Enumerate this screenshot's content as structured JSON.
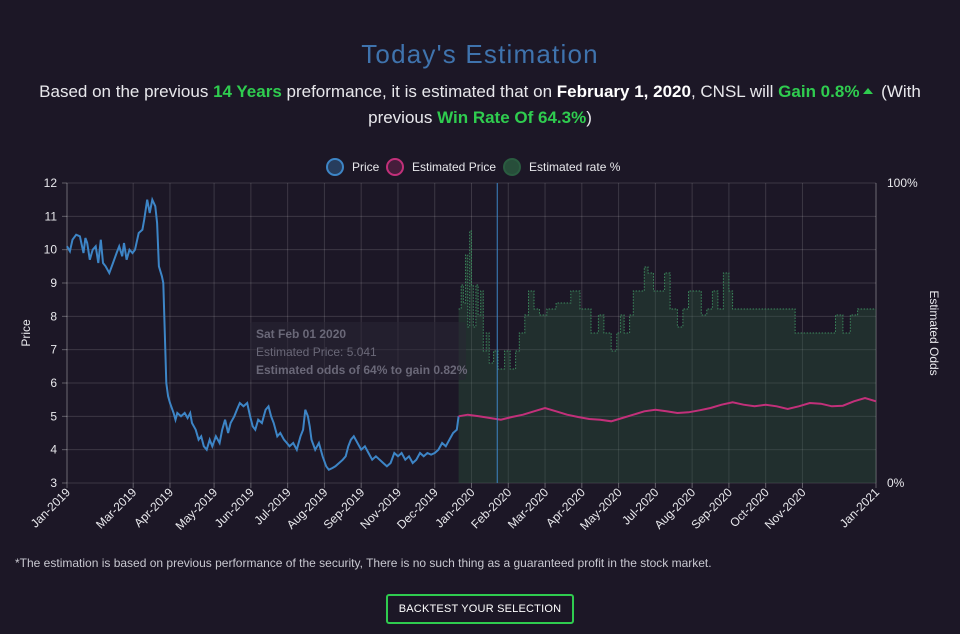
{
  "header": {
    "title": "Today's Estimation"
  },
  "summary": {
    "t1": "Based on the previous ",
    "years": "14 Years",
    "t2": " preformance, it is estimated that on ",
    "date": "February 1, 2020",
    "t3": ", CNSL will ",
    "gain": "Gain 0.8%",
    "t4": " (With previous ",
    "winrate": "Win Rate Of 64.3%",
    "t5": ")"
  },
  "colors": {
    "price": "#3d85c6",
    "estimated_price": "#c2307a",
    "estimated_rate": "#2a5c40",
    "accent_green": "#2fcc4f",
    "title_blue": "#3f73ad"
  },
  "chart_data": {
    "type": "line",
    "legend": [
      {
        "name": "Price",
        "color": "#3d85c6"
      },
      {
        "name": "Estimated Price",
        "color": "#c2307a"
      },
      {
        "name": "Estimated rate %",
        "color": "#2a5c40"
      }
    ],
    "ylabel_left": "Price",
    "ylabel_right": "Estimated Odds",
    "ylim": [
      3,
      12
    ],
    "yticks": [
      3,
      4,
      5,
      6,
      7,
      8,
      9,
      10,
      11,
      12
    ],
    "y2lim": [
      0,
      100
    ],
    "y2ticks": [
      {
        "value": 0,
        "label": "0%"
      },
      {
        "value": 100,
        "label": "100%"
      }
    ],
    "x_ticks": [
      {
        "t": 0,
        "label": "Jan-2019"
      },
      {
        "t": 1.8,
        "label": "Mar-2019"
      },
      {
        "t": 2.8,
        "label": "Apr-2019"
      },
      {
        "t": 4.0,
        "label": "May-2019"
      },
      {
        "t": 5.0,
        "label": "Jun-2019"
      },
      {
        "t": 6.0,
        "label": "Jul-2019"
      },
      {
        "t": 7.0,
        "label": "Aug-2019"
      },
      {
        "t": 8.0,
        "label": "Sep-2019"
      },
      {
        "t": 9.0,
        "label": "Nov-2019"
      },
      {
        "t": 10.0,
        "label": "Dec-2019"
      },
      {
        "t": 11.0,
        "label": "Jan-2020"
      },
      {
        "t": 12.0,
        "label": "Feb-2020"
      },
      {
        "t": 13.0,
        "label": "Mar-2020"
      },
      {
        "t": 14.0,
        "label": "Apr-2020"
      },
      {
        "t": 15.0,
        "label": "May-2020"
      },
      {
        "t": 16.0,
        "label": "Jul-2020"
      },
      {
        "t": 17.0,
        "label": "Aug-2020"
      },
      {
        "t": 18.0,
        "label": "Sep-2020"
      },
      {
        "t": 19.0,
        "label": "Oct-2020"
      },
      {
        "t": 20.0,
        "label": "Nov-2020"
      },
      {
        "t": 22.0,
        "label": "Jan-2021"
      }
    ],
    "x_range": [
      0,
      22
    ],
    "marker_t": 11.7,
    "series": [
      {
        "name": "Price",
        "axis": "left",
        "points": [
          [
            0.0,
            10.1
          ],
          [
            0.08,
            9.95
          ],
          [
            0.15,
            10.3
          ],
          [
            0.25,
            10.45
          ],
          [
            0.35,
            10.4
          ],
          [
            0.45,
            9.9
          ],
          [
            0.5,
            10.35
          ],
          [
            0.55,
            10.2
          ],
          [
            0.62,
            9.7
          ],
          [
            0.7,
            10.0
          ],
          [
            0.78,
            10.1
          ],
          [
            0.85,
            9.6
          ],
          [
            0.92,
            10.3
          ],
          [
            0.98,
            9.6
          ],
          [
            1.05,
            9.5
          ],
          [
            1.15,
            9.3
          ],
          [
            1.25,
            9.6
          ],
          [
            1.35,
            9.9
          ],
          [
            1.42,
            10.1
          ],
          [
            1.5,
            9.8
          ],
          [
            1.55,
            10.2
          ],
          [
            1.62,
            9.7
          ],
          [
            1.7,
            10.0
          ],
          [
            1.78,
            9.9
          ],
          [
            1.85,
            10.0
          ],
          [
            1.95,
            10.5
          ],
          [
            2.05,
            10.6
          ],
          [
            2.1,
            10.9
          ],
          [
            2.18,
            11.5
          ],
          [
            2.25,
            11.1
          ],
          [
            2.32,
            11.5
          ],
          [
            2.4,
            11.3
          ],
          [
            2.45,
            10.8
          ],
          [
            2.5,
            9.5
          ],
          [
            2.58,
            9.2
          ],
          [
            2.62,
            9.0
          ],
          [
            2.66,
            7.5
          ],
          [
            2.7,
            6.0
          ],
          [
            2.75,
            5.6
          ],
          [
            2.8,
            5.4
          ],
          [
            2.9,
            5.1
          ],
          [
            2.95,
            4.9
          ],
          [
            3.0,
            5.1
          ],
          [
            3.1,
            5.0
          ],
          [
            3.2,
            5.1
          ],
          [
            3.28,
            4.95
          ],
          [
            3.35,
            5.1
          ],
          [
            3.4,
            4.8
          ],
          [
            3.5,
            4.6
          ],
          [
            3.58,
            4.3
          ],
          [
            3.65,
            4.4
          ],
          [
            3.72,
            4.1
          ],
          [
            3.8,
            4.0
          ],
          [
            3.88,
            4.3
          ],
          [
            3.95,
            4.1
          ],
          [
            4.05,
            4.4
          ],
          [
            4.15,
            4.2
          ],
          [
            4.22,
            4.6
          ],
          [
            4.3,
            4.9
          ],
          [
            4.38,
            4.5
          ],
          [
            4.45,
            4.8
          ],
          [
            4.55,
            5.0
          ],
          [
            4.62,
            5.2
          ],
          [
            4.7,
            5.4
          ],
          [
            4.8,
            5.3
          ],
          [
            4.9,
            5.4
          ],
          [
            4.98,
            5.0
          ],
          [
            5.05,
            4.7
          ],
          [
            5.12,
            4.6
          ],
          [
            5.2,
            4.9
          ],
          [
            5.3,
            4.8
          ],
          [
            5.4,
            5.2
          ],
          [
            5.48,
            5.3
          ],
          [
            5.55,
            5.0
          ],
          [
            5.62,
            4.8
          ],
          [
            5.72,
            4.4
          ],
          [
            5.8,
            4.5
          ],
          [
            5.9,
            4.3
          ],
          [
            5.98,
            4.2
          ],
          [
            6.05,
            4.1
          ],
          [
            6.15,
            4.2
          ],
          [
            6.25,
            4.0
          ],
          [
            6.35,
            4.4
          ],
          [
            6.42,
            4.6
          ],
          [
            6.48,
            5.2
          ],
          [
            6.55,
            5.0
          ],
          [
            6.6,
            4.7
          ],
          [
            6.65,
            4.3
          ],
          [
            6.75,
            4.0
          ],
          [
            6.85,
            4.2
          ],
          [
            6.95,
            3.8
          ],
          [
            7.05,
            3.5
          ],
          [
            7.12,
            3.4
          ],
          [
            7.22,
            3.45
          ],
          [
            7.3,
            3.5
          ],
          [
            7.4,
            3.6
          ],
          [
            7.5,
            3.7
          ],
          [
            7.58,
            3.8
          ],
          [
            7.65,
            4.1
          ],
          [
            7.72,
            4.3
          ],
          [
            7.8,
            4.4
          ],
          [
            7.9,
            4.2
          ],
          [
            8.0,
            4.0
          ],
          [
            8.1,
            4.1
          ],
          [
            8.2,
            3.9
          ],
          [
            8.3,
            3.7
          ],
          [
            8.4,
            3.8
          ],
          [
            8.5,
            3.7
          ],
          [
            8.6,
            3.6
          ],
          [
            8.7,
            3.5
          ],
          [
            8.8,
            3.6
          ],
          [
            8.9,
            3.9
          ],
          [
            9.0,
            3.8
          ],
          [
            9.1,
            3.9
          ],
          [
            9.2,
            3.7
          ],
          [
            9.3,
            3.8
          ],
          [
            9.4,
            3.6
          ],
          [
            9.5,
            3.7
          ],
          [
            9.6,
            3.9
          ],
          [
            9.7,
            3.8
          ],
          [
            9.8,
            3.9
          ],
          [
            9.9,
            3.85
          ],
          [
            10.0,
            3.9
          ],
          [
            10.1,
            4.0
          ],
          [
            10.2,
            4.2
          ],
          [
            10.3,
            4.1
          ],
          [
            10.4,
            4.3
          ],
          [
            10.5,
            4.5
          ],
          [
            10.6,
            4.6
          ],
          [
            10.65,
            5.0
          ]
        ]
      },
      {
        "name": "Estimated Price",
        "axis": "left",
        "points": [
          [
            10.65,
            5.0
          ],
          [
            10.9,
            5.05
          ],
          [
            11.2,
            5.0
          ],
          [
            11.5,
            4.95
          ],
          [
            11.8,
            4.9
          ],
          [
            12.1,
            4.98
          ],
          [
            12.4,
            5.05
          ],
          [
            12.7,
            5.15
          ],
          [
            13.0,
            5.25
          ],
          [
            13.3,
            5.15
          ],
          [
            13.6,
            5.05
          ],
          [
            13.9,
            4.98
          ],
          [
            14.2,
            4.92
          ],
          [
            14.5,
            4.9
          ],
          [
            14.8,
            4.85
          ],
          [
            15.1,
            4.95
          ],
          [
            15.4,
            5.05
          ],
          [
            15.7,
            5.15
          ],
          [
            16.0,
            5.2
          ],
          [
            16.3,
            5.15
          ],
          [
            16.6,
            5.1
          ],
          [
            16.9,
            5.12
          ],
          [
            17.2,
            5.18
          ],
          [
            17.5,
            5.25
          ],
          [
            17.8,
            5.35
          ],
          [
            18.1,
            5.42
          ],
          [
            18.4,
            5.35
          ],
          [
            18.7,
            5.3
          ],
          [
            19.0,
            5.35
          ],
          [
            19.3,
            5.3
          ],
          [
            19.6,
            5.22
          ],
          [
            19.9,
            5.3
          ],
          [
            20.2,
            5.4
          ],
          [
            20.5,
            5.38
          ],
          [
            20.8,
            5.3
          ],
          [
            21.1,
            5.32
          ],
          [
            21.4,
            5.45
          ],
          [
            21.7,
            5.55
          ],
          [
            22.0,
            5.45
          ]
        ]
      },
      {
        "name": "Estimated rate %",
        "axis": "right",
        "points": [
          [
            10.65,
            58
          ],
          [
            10.72,
            66
          ],
          [
            10.78,
            60
          ],
          [
            10.84,
            76
          ],
          [
            10.9,
            52
          ],
          [
            10.95,
            84
          ],
          [
            11.0,
            66
          ],
          [
            11.05,
            52
          ],
          [
            11.12,
            66
          ],
          [
            11.18,
            56
          ],
          [
            11.25,
            64
          ],
          [
            11.32,
            44
          ],
          [
            11.4,
            50
          ],
          [
            11.48,
            40
          ],
          [
            11.6,
            44
          ],
          [
            11.72,
            38
          ],
          [
            11.9,
            44
          ],
          [
            12.05,
            38
          ],
          [
            12.2,
            44
          ],
          [
            12.3,
            50
          ],
          [
            12.45,
            56
          ],
          [
            12.55,
            64
          ],
          [
            12.7,
            58
          ],
          [
            12.85,
            56
          ],
          [
            13.05,
            58
          ],
          [
            13.3,
            60
          ],
          [
            13.55,
            60
          ],
          [
            13.7,
            64
          ],
          [
            13.85,
            64
          ],
          [
            13.95,
            58
          ],
          [
            14.1,
            58
          ],
          [
            14.25,
            50
          ],
          [
            14.45,
            56
          ],
          [
            14.6,
            50
          ],
          [
            14.8,
            44
          ],
          [
            14.95,
            50
          ],
          [
            15.05,
            56
          ],
          [
            15.15,
            50
          ],
          [
            15.3,
            56
          ],
          [
            15.4,
            64
          ],
          [
            15.55,
            64
          ],
          [
            15.7,
            72
          ],
          [
            15.8,
            70
          ],
          [
            15.95,
            64
          ],
          [
            16.1,
            64
          ],
          [
            16.25,
            70
          ],
          [
            16.4,
            58
          ],
          [
            16.6,
            52
          ],
          [
            16.75,
            58
          ],
          [
            16.9,
            64
          ],
          [
            17.1,
            64
          ],
          [
            17.25,
            56
          ],
          [
            17.4,
            58
          ],
          [
            17.55,
            64
          ],
          [
            17.7,
            58
          ],
          [
            17.85,
            70
          ],
          [
            18.0,
            64
          ],
          [
            18.1,
            58
          ],
          [
            18.3,
            58
          ],
          [
            18.6,
            58
          ],
          [
            18.9,
            58
          ],
          [
            19.2,
            58
          ],
          [
            19.5,
            58
          ],
          [
            19.8,
            50
          ],
          [
            20.1,
            50
          ],
          [
            20.4,
            50
          ],
          [
            20.7,
            50
          ],
          [
            20.9,
            56
          ],
          [
            21.1,
            50
          ],
          [
            21.3,
            56
          ],
          [
            21.5,
            58
          ],
          [
            21.8,
            58
          ],
          [
            22.0,
            58
          ]
        ]
      }
    ]
  },
  "tooltip": {
    "title": "Sat Feb 01 2020",
    "line1": "Estimated Price: 5.041",
    "line2": "Estimated odds of 64% to gain 0.82%"
  },
  "footer": {
    "disclaimer": "*The estimation is based on previous performance of the security, There is no such thing as a guaranteed profit in the stock market.",
    "button_label": "BACKTEST YOUR SELECTION"
  }
}
